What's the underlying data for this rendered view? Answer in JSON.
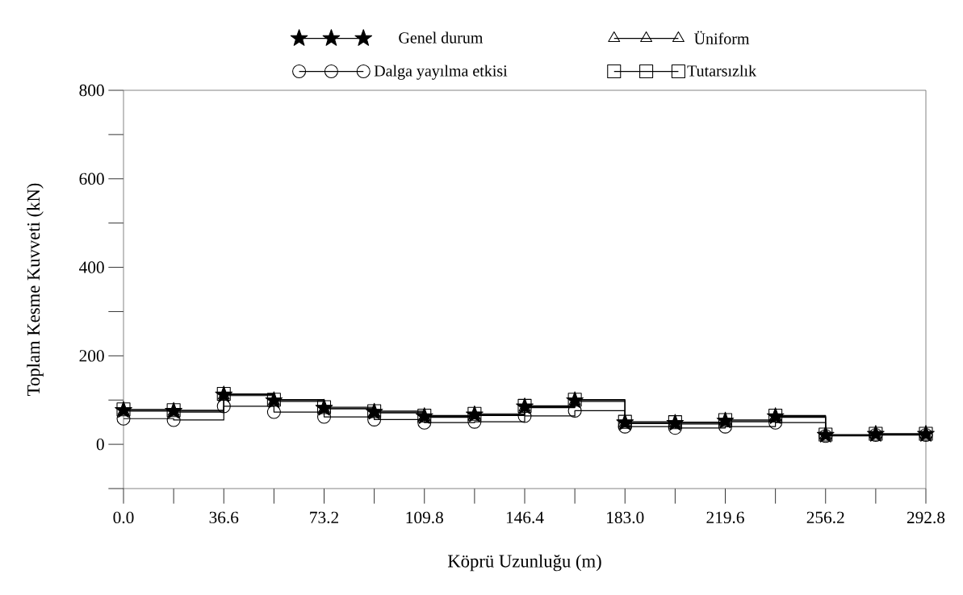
{
  "chart_data": {
    "type": "step",
    "xlabel": "Köprü Uzunluğu (m)",
    "ylabel": "Toplam Kesme Kuvveti (kN)",
    "x": [
      0,
      18.3,
      36.6,
      54.9,
      73.2,
      91.5,
      109.8,
      128.1,
      146.4,
      164.7,
      183.0,
      201.3,
      219.6,
      237.9,
      256.2,
      274.5,
      292.8
    ],
    "series": [
      {
        "name": "Genel durum",
        "color": "#000000",
        "marker": "star",
        "values": [
          77,
          75,
          112,
          99,
          82,
          73,
          63,
          67,
          85,
          99,
          49,
          48,
          53,
          63,
          21,
          23,
          23
        ]
      },
      {
        "name": "Üniform",
        "color": "#000000",
        "marker": "triangle",
        "values": [
          75,
          73,
          110,
          97,
          80,
          71,
          61,
          65,
          83,
          97,
          47,
          46,
          51,
          61,
          20,
          22,
          22
        ]
      },
      {
        "name": "Dalga yayılma etkisi",
        "color": "#000000",
        "marker": "circle",
        "values": [
          58,
          55,
          86,
          73,
          62,
          56,
          49,
          51,
          64,
          76,
          40,
          37,
          40,
          49,
          19,
          21,
          21
        ]
      },
      {
        "name": "Tutarsızlık",
        "color": "#000000",
        "marker": "square",
        "values": [
          79,
          77,
          114,
          101,
          84,
          75,
          65,
          69,
          87,
          101,
          51,
          50,
          55,
          65,
          22,
          24,
          24
        ]
      }
    ],
    "xlim": [
      0,
      292.8
    ],
    "ylim": [
      -100,
      800
    ],
    "xticks": [
      {
        "value": 0,
        "label": "0.0"
      },
      {
        "value": 36.6,
        "label": "36.6"
      },
      {
        "value": 73.2,
        "label": "73.2"
      },
      {
        "value": 109.8,
        "label": "109.8"
      },
      {
        "value": 146.4,
        "label": "146.4"
      },
      {
        "value": 183.0,
        "label": "183.0"
      },
      {
        "value": 219.6,
        "label": "219.6"
      },
      {
        "value": 256.2,
        "label": "256.2"
      },
      {
        "value": 292.8,
        "label": "292.8"
      }
    ],
    "yticks": [
      0,
      200,
      400,
      600,
      800
    ],
    "grid": false,
    "legend": "top",
    "line_style": "solid"
  }
}
